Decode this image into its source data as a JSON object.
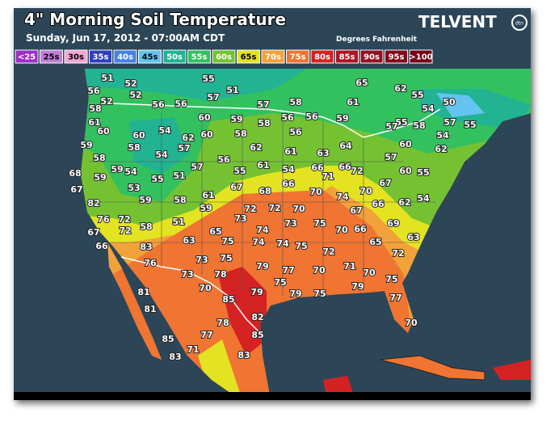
{
  "header": {
    "title": "4\" Morning Soil Temperature",
    "subtitle": "Sunday, Jun 17, 2012 - 07:00AM CDT",
    "units": "Degrees Fahrenheit",
    "brand": "TELVENT",
    "brand_mark": "dtn"
  },
  "legend": [
    {
      "label": "<25",
      "color": "#9a2fc7"
    },
    {
      "label": "25s",
      "color": "#c07fd6"
    },
    {
      "label": "30s",
      "color": "#f2a6d4"
    },
    {
      "label": "35s",
      "color": "#2f3fbf"
    },
    {
      "label": "40s",
      "color": "#4682e0"
    },
    {
      "label": "45s",
      "color": "#63c4f0"
    },
    {
      "label": "50s",
      "color": "#22b392"
    },
    {
      "label": "55s",
      "color": "#33c160"
    },
    {
      "label": "60s",
      "color": "#74c232"
    },
    {
      "label": "65s",
      "color": "#e3e322"
    },
    {
      "label": "70s",
      "color": "#f2a23a"
    },
    {
      "label": "75s",
      "color": "#f07432"
    },
    {
      "label": "80s",
      "color": "#d42222"
    },
    {
      "label": "85s",
      "color": "#b31222"
    },
    {
      "label": "90s",
      "color": "#931222"
    },
    {
      "label": ">100",
      "color": "#74001a"
    },
    {
      "label": "95s",
      "color": "#82091a"
    }
  ],
  "stations": [
    51,
    52,
    55,
    51,
    57,
    57,
    58,
    61,
    65,
    62,
    55,
    54,
    50,
    56,
    52,
    52,
    56,
    56,
    58,
    61,
    60,
    60,
    59,
    58,
    56,
    56,
    59,
    55,
    58,
    57,
    55,
    60,
    54,
    62,
    60,
    58,
    56,
    57,
    60,
    54,
    62,
    59,
    58,
    57,
    62,
    61,
    63,
    64,
    58,
    54,
    56,
    57,
    55,
    68,
    59,
    59,
    54,
    55,
    51,
    57,
    55,
    61,
    54,
    66,
    71,
    66,
    72,
    60,
    67,
    53,
    59,
    58,
    61,
    67,
    68,
    66,
    70,
    74,
    70,
    67,
    82,
    59,
    72,
    72,
    70,
    67,
    66,
    62,
    54,
    73,
    73,
    75,
    69,
    72,
    51,
    76,
    67,
    72,
    58,
    65,
    74,
    70,
    66,
    63,
    66,
    83,
    63,
    75,
    74,
    74,
    75,
    72,
    65,
    72,
    76,
    73,
    75,
    79,
    77,
    70,
    71,
    70,
    75,
    73,
    78,
    75,
    81,
    70,
    79,
    79,
    75,
    79,
    77,
    81,
    85,
    82,
    78,
    70,
    85,
    77,
    85,
    71,
    83,
    83
  ]
}
